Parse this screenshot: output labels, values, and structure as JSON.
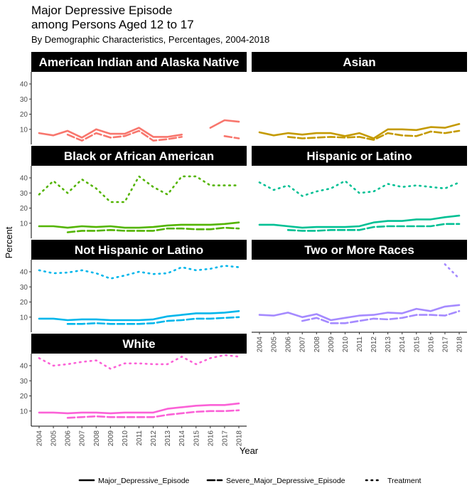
{
  "chart_data": {
    "type": "line",
    "title": "Major Depressive Episode\namong Persons Aged 12 to 17",
    "subtitle": "By Demographic Characteristics, Percentages, 2004-2018",
    "xlabel": "Year",
    "ylabel": "Percent",
    "x": [
      2004,
      2005,
      2006,
      2007,
      2008,
      2009,
      2010,
      2011,
      2012,
      2013,
      2014,
      2015,
      2016,
      2017,
      2018
    ],
    "ylim": [
      0,
      48
    ],
    "y_ticks": [
      10,
      20,
      30,
      40
    ],
    "legend_placement": "bottom",
    "legend": [
      {
        "name": "Major_Depressive_Episode",
        "style": "solid"
      },
      {
        "name": "Severe_Major_Depressive_Episode",
        "style": "dashed"
      },
      {
        "name": "Treatment",
        "style": "dotted"
      }
    ],
    "panels": [
      {
        "label": "American Indian and Alaska Native",
        "color": "#F8766D",
        "series": {
          "Major_Depressive_Episode": [
            7.5,
            6.0,
            9.0,
            4.5,
            10.0,
            7.0,
            7.0,
            11.0,
            5.0,
            5.0,
            6.5,
            null,
            11.0,
            16.0,
            15.0
          ],
          "Severe_Major_Depressive_Episode": [
            null,
            null,
            6.5,
            2.5,
            7.5,
            4.5,
            5.5,
            9.0,
            2.5,
            3.5,
            5.0,
            null,
            null,
            5.5,
            4.0
          ],
          "Treatment": [
            null,
            null,
            null,
            null,
            null,
            null,
            null,
            null,
            null,
            null,
            null,
            null,
            null,
            null,
            null
          ]
        }
      },
      {
        "label": "Asian",
        "color": "#C49A00",
        "series": {
          "Major_Depressive_Episode": [
            8.0,
            6.0,
            7.5,
            6.5,
            7.5,
            7.5,
            5.5,
            7.5,
            4.0,
            10.0,
            10.0,
            9.5,
            11.5,
            11.0,
            13.5
          ],
          "Severe_Major_Depressive_Episode": [
            null,
            null,
            5.0,
            4.0,
            4.5,
            5.0,
            4.5,
            5.0,
            3.0,
            7.5,
            6.0,
            5.5,
            8.5,
            7.5,
            9.0
          ],
          "Treatment": [
            null,
            null,
            null,
            null,
            null,
            null,
            null,
            null,
            null,
            null,
            null,
            null,
            null,
            null,
            null
          ]
        }
      },
      {
        "label": "Black or African American",
        "color": "#53B400",
        "series": {
          "Major_Depressive_Episode": [
            8.0,
            8.0,
            7.0,
            8.0,
            7.5,
            8.0,
            7.0,
            7.0,
            7.5,
            8.5,
            9.0,
            9.0,
            9.0,
            9.5,
            10.5
          ],
          "Severe_Major_Depressive_Episode": [
            null,
            null,
            4.0,
            5.0,
            5.0,
            5.5,
            5.0,
            5.0,
            5.0,
            6.5,
            6.5,
            6.0,
            6.0,
            7.0,
            6.5
          ],
          "Treatment": [
            29.0,
            38.0,
            30.0,
            39.0,
            33.0,
            24.0,
            24.0,
            41.0,
            34.0,
            29.0,
            41.0,
            41.0,
            35.0,
            35.0,
            35.0
          ]
        }
      },
      {
        "label": "Hispanic or Latino",
        "color": "#00C094",
        "series": {
          "Major_Depressive_Episode": [
            9.0,
            9.0,
            8.0,
            7.0,
            7.5,
            7.5,
            7.5,
            8.0,
            10.5,
            11.5,
            11.5,
            12.5,
            12.5,
            14.0,
            15.0
          ],
          "Severe_Major_Depressive_Episode": [
            null,
            null,
            5.5,
            5.0,
            5.0,
            5.5,
            5.5,
            5.5,
            7.5,
            8.0,
            8.0,
            8.0,
            8.0,
            9.5,
            9.5
          ],
          "Treatment": [
            37.0,
            32.0,
            35.0,
            28.0,
            31.0,
            33.0,
            38.0,
            30.0,
            31.0,
            36.0,
            34.0,
            35.0,
            34.0,
            33.0,
            37.0
          ]
        }
      },
      {
        "label": "Not Hispanic or Latino",
        "color": "#00B6EB",
        "series": {
          "Major_Depressive_Episode": [
            9.0,
            9.0,
            8.0,
            8.5,
            8.5,
            8.0,
            8.0,
            8.0,
            8.5,
            10.5,
            11.5,
            12.5,
            12.5,
            13.0,
            14.0
          ],
          "Severe_Major_Depressive_Episode": [
            null,
            null,
            5.5,
            5.5,
            6.0,
            5.5,
            5.5,
            5.5,
            6.0,
            7.5,
            8.0,
            9.0,
            9.0,
            9.5,
            10.0
          ],
          "Treatment": [
            41.0,
            39.0,
            39.5,
            41.0,
            39.0,
            35.5,
            37.5,
            40.0,
            38.5,
            39.0,
            43.0,
            41.0,
            42.0,
            44.0,
            43.0
          ]
        }
      },
      {
        "label": "Two or More Races",
        "color": "#A58AFF",
        "series": {
          "Major_Depressive_Episode": [
            11.5,
            11.0,
            13.0,
            10.0,
            12.0,
            8.0,
            9.5,
            11.0,
            11.5,
            13.0,
            12.5,
            15.5,
            14.0,
            17.0,
            18.0
          ],
          "Severe_Major_Depressive_Episode": [
            null,
            null,
            null,
            7.5,
            9.5,
            6.0,
            6.0,
            7.5,
            9.0,
            8.5,
            9.5,
            11.5,
            11.5,
            11.0,
            14.0
          ],
          "Treatment": [
            null,
            null,
            null,
            null,
            null,
            null,
            null,
            null,
            null,
            null,
            null,
            null,
            null,
            45.0,
            35.5
          ]
        }
      },
      {
        "label": "White",
        "color": "#FB61D7",
        "series": {
          "Major_Depressive_Episode": [
            9.0,
            9.0,
            8.5,
            9.0,
            9.0,
            8.5,
            9.0,
            9.0,
            9.0,
            11.5,
            12.5,
            13.5,
            14.0,
            14.0,
            15.0
          ],
          "Severe_Major_Depressive_Episode": [
            null,
            null,
            5.5,
            6.0,
            6.5,
            6.0,
            6.0,
            6.0,
            6.0,
            7.5,
            8.5,
            9.5,
            10.0,
            10.0,
            10.5
          ],
          "Treatment": [
            45.0,
            40.0,
            41.0,
            42.5,
            43.5,
            38.0,
            41.5,
            41.5,
            41.0,
            41.0,
            46.0,
            41.0,
            45.0,
            47.0,
            46.0
          ]
        }
      }
    ]
  }
}
